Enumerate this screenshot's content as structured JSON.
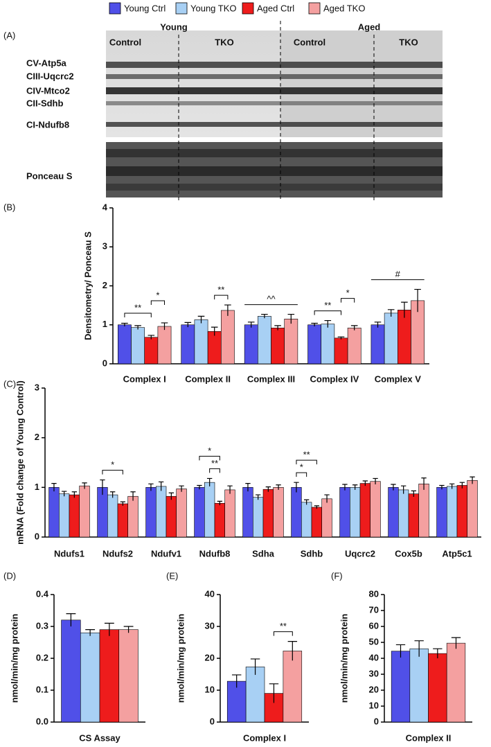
{
  "legend": [
    {
      "name": "Young Ctrl",
      "color": "#5050e8"
    },
    {
      "name": "Young TKO",
      "color": "#a8d0f4"
    },
    {
      "name": "Aged Ctrl",
      "color": "#ee1c1c"
    },
    {
      "name": "Aged TKO",
      "color": "#f4a0a0"
    }
  ],
  "blot": {
    "panel": "(A)",
    "groups": [
      "Young",
      "Aged"
    ],
    "subgroups": [
      "Control",
      "TKO",
      "Control",
      "TKO"
    ],
    "proteins": [
      "CV-Atp5a",
      "CIII-Uqcrc2",
      "CIV-Mtco2",
      "CII-Sdhb",
      "CI-Ndufb8"
    ],
    "loading": "Ponceau S"
  },
  "chart_data": [
    {
      "type": "bar",
      "panel": "(B)",
      "ylabel": "Densitometry/ Ponceau S",
      "categories": [
        "Complex I",
        "Complex II",
        "Complex III",
        "Complex IV",
        "Complex V"
      ],
      "series": [
        {
          "color": "#5050e8",
          "values": [
            1.0,
            1.0,
            1.0,
            1.0,
            1.0
          ],
          "errors": [
            0.04,
            0.06,
            0.07,
            0.04,
            0.07
          ]
        },
        {
          "color": "#a8d0f4",
          "values": [
            0.93,
            1.13,
            1.22,
            1.02,
            1.3
          ],
          "errors": [
            0.05,
            0.09,
            0.05,
            0.09,
            0.09
          ]
        },
        {
          "color": "#ee1c1c",
          "values": [
            0.68,
            0.83,
            0.92,
            0.66,
            1.38
          ],
          "errors": [
            0.05,
            0.11,
            0.06,
            0.03,
            0.2
          ]
        },
        {
          "color": "#f4a0a0",
          "values": [
            0.96,
            1.37,
            1.15,
            0.92,
            1.62
          ],
          "errors": [
            0.09,
            0.14,
            0.12,
            0.06,
            0.29
          ]
        }
      ],
      "ylim": [
        0,
        4
      ],
      "yticks": [
        0,
        1,
        2,
        3,
        4
      ],
      "annotations": [
        {
          "text": "**",
          "category": 0,
          "from": 0,
          "to": 2
        },
        {
          "text": "*",
          "category": 0,
          "from": 2,
          "to": 3
        },
        {
          "text": "**",
          "category": 1,
          "from": 2,
          "to": 3
        },
        {
          "text": "^^",
          "category": 2,
          "from": 0,
          "to": 3
        },
        {
          "text": "**",
          "category": 3,
          "from": 0,
          "to": 2
        },
        {
          "text": "*",
          "category": 3,
          "from": 2,
          "to": 3
        },
        {
          "text": "#",
          "category": 4,
          "from": 0,
          "to": 3
        }
      ]
    },
    {
      "type": "bar",
      "panel": "(C)",
      "ylabel": "mRNA (Fold change of Young Control)",
      "categories": [
        "Ndufs1",
        "Ndufs2",
        "Ndufv1",
        "Ndufb8",
        "Sdha",
        "Sdhb",
        "Uqcrc2",
        "Cox5b",
        "Atp5c1"
      ],
      "series": [
        {
          "color": "#5050e8",
          "values": [
            1.0,
            1.0,
            1.0,
            1.0,
            1.0,
            1.0,
            1.0,
            1.0,
            1.0
          ],
          "errors": [
            0.08,
            0.15,
            0.07,
            0.04,
            0.08,
            0.1,
            0.06,
            0.06,
            0.04
          ]
        },
        {
          "color": "#a8d0f4",
          "values": [
            0.87,
            0.85,
            1.02,
            1.1,
            0.8,
            0.7,
            1.0,
            0.95,
            1.02
          ],
          "errors": [
            0.05,
            0.06,
            0.09,
            0.08,
            0.05,
            0.05,
            0.05,
            0.08,
            0.05
          ]
        },
        {
          "color": "#ee1c1c",
          "values": [
            0.85,
            0.67,
            0.82,
            0.68,
            0.96,
            0.6,
            1.08,
            0.87,
            1.04
          ],
          "errors": [
            0.06,
            0.04,
            0.07,
            0.04,
            0.05,
            0.03,
            0.05,
            0.06,
            0.06
          ]
        },
        {
          "color": "#f4a0a0",
          "values": [
            1.03,
            0.82,
            0.97,
            0.95,
            1.0,
            0.77,
            1.12,
            1.07,
            1.14
          ],
          "errors": [
            0.06,
            0.09,
            0.06,
            0.08,
            0.05,
            0.08,
            0.06,
            0.12,
            0.07
          ]
        }
      ],
      "ylim": [
        0,
        3
      ],
      "yticks": [
        0,
        1,
        2,
        3
      ],
      "annotations": [
        {
          "text": "*",
          "category": 1,
          "from": 0,
          "to": 2
        },
        {
          "text": "**",
          "category": 3,
          "from": 1,
          "to": 2
        },
        {
          "text": "*",
          "category": 3,
          "from": 0,
          "to": 2
        },
        {
          "text": "*",
          "category": 5,
          "from": 0,
          "to": 1
        },
        {
          "text": "**",
          "category": 5,
          "from": 0,
          "to": 2
        }
      ]
    },
    {
      "type": "bar",
      "panel": "(D)",
      "ylabel": "nmol/min/mg protein",
      "xlabel": "CS Assay",
      "series": [
        {
          "color": "#5050e8",
          "values": [
            0.32
          ],
          "errors": [
            0.02
          ]
        },
        {
          "color": "#a8d0f4",
          "values": [
            0.28
          ],
          "errors": [
            0.01
          ]
        },
        {
          "color": "#ee1c1c",
          "values": [
            0.29
          ],
          "errors": [
            0.02
          ]
        },
        {
          "color": "#f4a0a0",
          "values": [
            0.29
          ],
          "errors": [
            0.01
          ]
        }
      ],
      "ylim": [
        0,
        0.4
      ],
      "yticks": [
        {
          "value": 0,
          "label": "0.0"
        },
        0.1,
        0.2,
        0.3,
        0.4
      ],
      "annotations": []
    },
    {
      "type": "bar",
      "panel": "(E)",
      "ylabel": "nmol/min/mg protein",
      "xlabel": "Complex I",
      "series": [
        {
          "color": "#5050e8",
          "values": [
            12.8
          ],
          "errors": [
            2
          ]
        },
        {
          "color": "#a8d0f4",
          "values": [
            17.3
          ],
          "errors": [
            2.5
          ]
        },
        {
          "color": "#ee1c1c",
          "values": [
            9.0
          ],
          "errors": [
            3
          ]
        },
        {
          "color": "#f4a0a0",
          "values": [
            22.3
          ],
          "errors": [
            3
          ]
        }
      ],
      "ylim": [
        0,
        40
      ],
      "yticks": [
        0,
        10,
        20,
        30,
        40
      ],
      "annotations": [
        {
          "text": "**",
          "category": 0,
          "from": 2,
          "to": 3
        }
      ]
    },
    {
      "type": "bar",
      "panel": "(F)",
      "ylabel": "nmol/min/mg protein",
      "xlabel": "Complex II",
      "series": [
        {
          "color": "#5050e8",
          "values": [
            44.5
          ],
          "errors": [
            4
          ]
        },
        {
          "color": "#a8d0f4",
          "values": [
            46
          ],
          "errors": [
            5
          ]
        },
        {
          "color": "#ee1c1c",
          "values": [
            43
          ],
          "errors": [
            3
          ]
        },
        {
          "color": "#f4a0a0",
          "values": [
            49.5
          ],
          "errors": [
            3.5
          ]
        }
      ],
      "ylim": [
        0,
        80
      ],
      "yticks": [
        0,
        10,
        20,
        30,
        40,
        50,
        60,
        70,
        80
      ],
      "annotations": []
    }
  ]
}
